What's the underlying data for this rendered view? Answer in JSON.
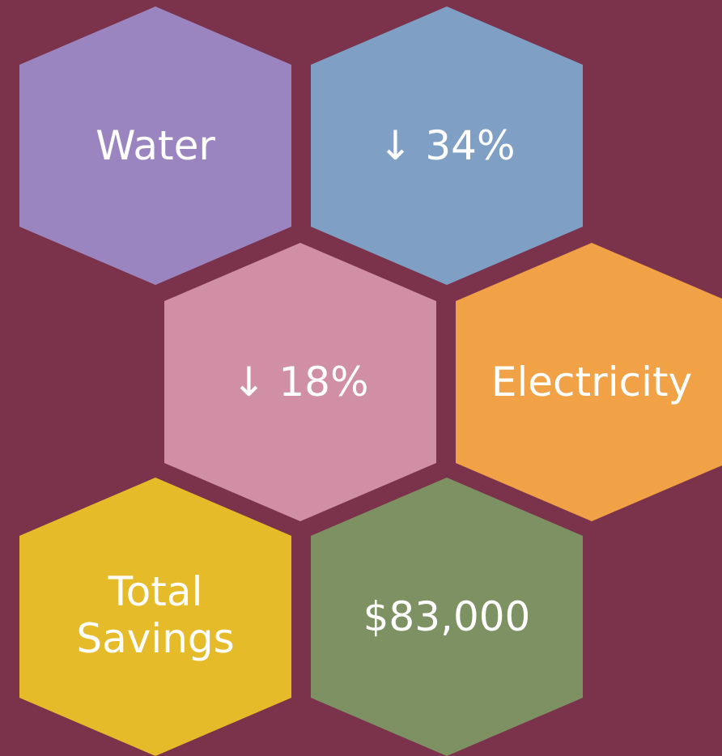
{
  "hexagons": [
    {
      "label": "Water"
    },
    {
      "label": "↓ 34%"
    },
    {
      "label": "↓ 18%"
    },
    {
      "label": "Electricity"
    },
    {
      "label": "Total Savings"
    },
    {
      "label": "$83,000"
    }
  ]
}
